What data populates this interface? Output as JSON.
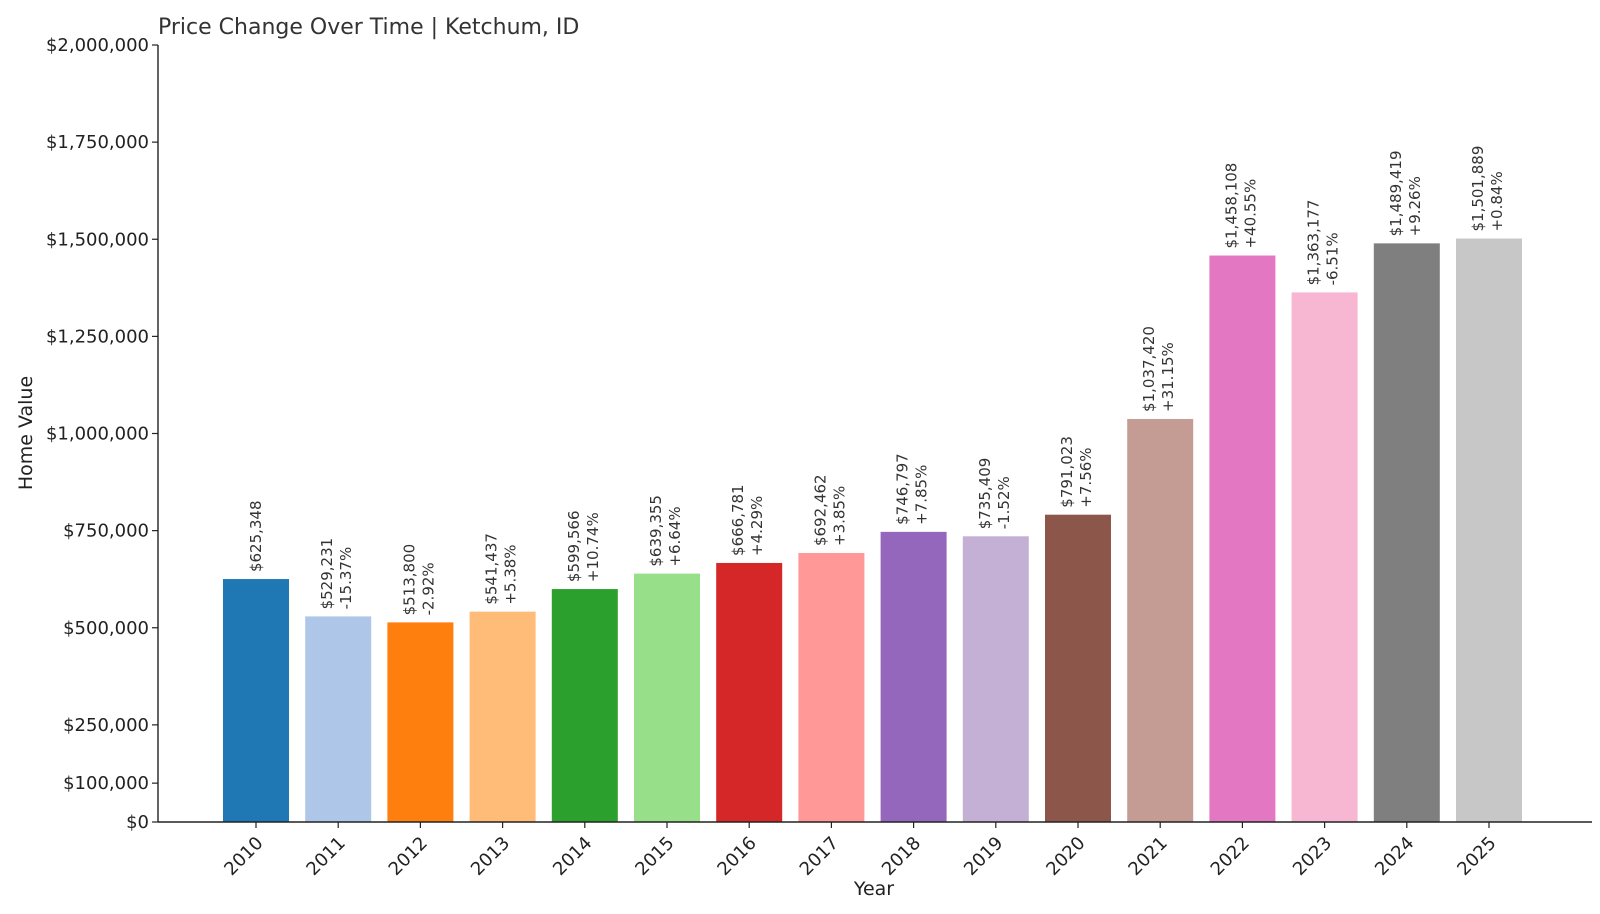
{
  "chart_data": {
    "type": "bar",
    "title": "Price Change Over Time | Ketchum, ID",
    "xlabel": "Year",
    "ylabel": "Home Value",
    "ylim": [
      0,
      2000000
    ],
    "yticks": [
      0,
      100000,
      250000,
      500000,
      750000,
      1000000,
      1250000,
      1500000,
      1750000,
      2000000
    ],
    "ytick_labels": [
      "$0",
      "$100,000",
      "$250,000",
      "$500,000",
      "$750,000",
      "$1,000,000",
      "$1,250,000",
      "$1,500,000",
      "$1,750,000",
      "$2,000,000"
    ],
    "grid": false,
    "categories": [
      "2010",
      "2011",
      "2012",
      "2013",
      "2014",
      "2015",
      "2016",
      "2017",
      "2018",
      "2019",
      "2020",
      "2021",
      "2022",
      "2023",
      "2024",
      "2025"
    ],
    "values": [
      625348,
      529231,
      513800,
      541437,
      599566,
      639355,
      666781,
      692462,
      746797,
      735409,
      791023,
      1037420,
      1458108,
      1363177,
      1489419,
      1501889
    ],
    "value_labels": [
      "$625,348",
      "$529,231",
      "$513,800",
      "$541,437",
      "$599,566",
      "$639,355",
      "$666,781",
      "$692,462",
      "$746,797",
      "$735,409",
      "$791,023",
      "$1,037,420",
      "$1,458,108",
      "$1,363,177",
      "$1,489,419",
      "$1,501,889"
    ],
    "change_labels": [
      "",
      "-15.37%",
      "-2.92%",
      "+5.38%",
      "+10.74%",
      "+6.64%",
      "+4.29%",
      "+3.85%",
      "+7.85%",
      "-1.52%",
      "+7.56%",
      "+31.15%",
      "+40.55%",
      "-6.51%",
      "+9.26%",
      "+0.84%"
    ],
    "colors": [
      "#1f77b4",
      "#aec7e8",
      "#ff7f0e",
      "#ffbb78",
      "#2ca02c",
      "#98df8a",
      "#d62728",
      "#ff9896",
      "#9467bd",
      "#c5b0d5",
      "#8c564b",
      "#c49c94",
      "#e377c2",
      "#f7b6d2",
      "#7f7f7f",
      "#c7c7c7"
    ]
  }
}
